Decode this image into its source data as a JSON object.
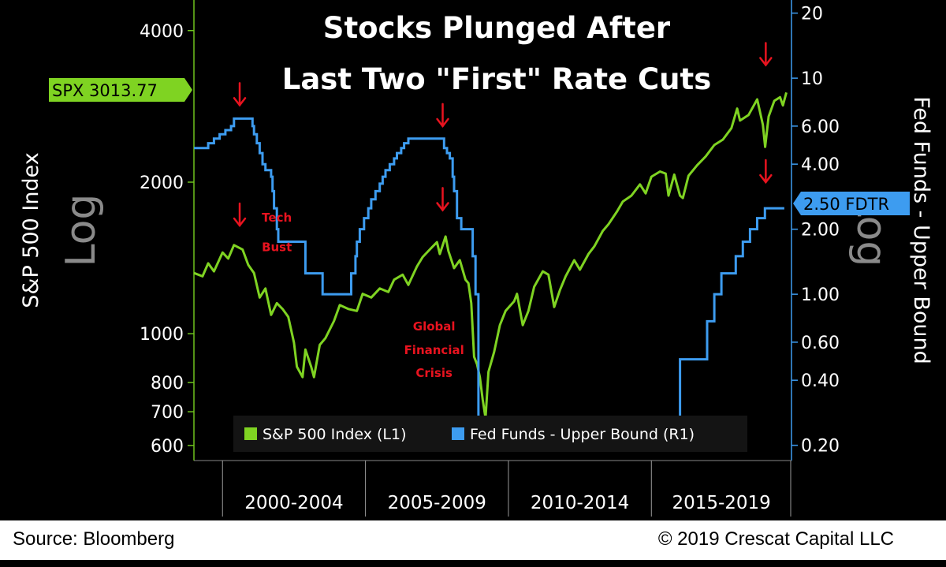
{
  "chart_data": {
    "type": "line",
    "title_line1": "Stocks Plunged After",
    "title_line2": "Last Two \"First\" Rate Cuts",
    "ylabel_left": "S&P 500 Index",
    "ylabel_left_scale": "Log",
    "ylabel_right": "Fed Funds - Upper Bound",
    "ylabel_right_scale": "Log",
    "left_ticks": [
      {
        "v": 4000,
        "label": "4000"
      },
      {
        "v": 2000,
        "label": "2000"
      },
      {
        "v": 1000,
        "label": "1000"
      },
      {
        "v": 800,
        "label": "800"
      },
      {
        "v": 700,
        "label": "700"
      },
      {
        "v": 600,
        "label": "600"
      }
    ],
    "right_ticks": [
      {
        "v": 20,
        "label": "20"
      },
      {
        "v": 10,
        "label": "10"
      },
      {
        "v": 6,
        "label": "6.00"
      },
      {
        "v": 4,
        "label": "4.00"
      },
      {
        "v": 2,
        "label": "2.00"
      },
      {
        "v": 1,
        "label": "1.00"
      },
      {
        "v": 0.6,
        "label": "0.60"
      },
      {
        "v": 0.4,
        "label": "0.40"
      },
      {
        "v": 0.2,
        "label": "0.20"
      }
    ],
    "x_periods": [
      "2000-2004",
      "2005-2009",
      "2010-2014",
      "2015-2019"
    ],
    "xlim": [
      1999.0,
      2019.9
    ],
    "left_ylim": [
      560,
      4600
    ],
    "right_ylim": [
      0.17,
      23
    ],
    "scale": "log",
    "series": [
      {
        "name": "S&P 500 Index (L1)",
        "axis": "left",
        "color": "#7fd322",
        "points": [
          [
            1999.0,
            1320
          ],
          [
            1999.3,
            1300
          ],
          [
            1999.5,
            1380
          ],
          [
            1999.7,
            1330
          ],
          [
            2000.0,
            1450
          ],
          [
            2000.2,
            1410
          ],
          [
            2000.4,
            1500
          ],
          [
            2000.7,
            1470
          ],
          [
            2000.9,
            1370
          ],
          [
            2001.1,
            1320
          ],
          [
            2001.3,
            1180
          ],
          [
            2001.5,
            1230
          ],
          [
            2001.7,
            1090
          ],
          [
            2001.9,
            1150
          ],
          [
            2002.1,
            1120
          ],
          [
            2002.3,
            1080
          ],
          [
            2002.5,
            960
          ],
          [
            2002.6,
            860
          ],
          [
            2002.8,
            820
          ],
          [
            2002.9,
            930
          ],
          [
            2003.1,
            860
          ],
          [
            2003.2,
            820
          ],
          [
            2003.4,
            950
          ],
          [
            2003.6,
            980
          ],
          [
            2003.9,
            1060
          ],
          [
            2004.1,
            1140
          ],
          [
            2004.4,
            1120
          ],
          [
            2004.7,
            1110
          ],
          [
            2004.9,
            1200
          ],
          [
            2005.2,
            1180
          ],
          [
            2005.5,
            1230
          ],
          [
            2005.8,
            1210
          ],
          [
            2006.0,
            1280
          ],
          [
            2006.3,
            1310
          ],
          [
            2006.5,
            1250
          ],
          [
            2006.8,
            1360
          ],
          [
            2007.0,
            1420
          ],
          [
            2007.3,
            1480
          ],
          [
            2007.5,
            1520
          ],
          [
            2007.6,
            1440
          ],
          [
            2007.8,
            1560
          ],
          [
            2007.9,
            1460
          ],
          [
            2008.1,
            1350
          ],
          [
            2008.3,
            1400
          ],
          [
            2008.5,
            1280
          ],
          [
            2008.6,
            1260
          ],
          [
            2008.7,
            1150
          ],
          [
            2008.8,
            900
          ],
          [
            2008.9,
            870
          ],
          [
            2009.0,
            820
          ],
          [
            2009.1,
            740
          ],
          [
            2009.2,
            680
          ],
          [
            2009.3,
            840
          ],
          [
            2009.5,
            920
          ],
          [
            2009.7,
            1040
          ],
          [
            2009.9,
            1110
          ],
          [
            2010.2,
            1160
          ],
          [
            2010.3,
            1200
          ],
          [
            2010.5,
            1040
          ],
          [
            2010.7,
            1110
          ],
          [
            2010.9,
            1240
          ],
          [
            2011.2,
            1330
          ],
          [
            2011.4,
            1310
          ],
          [
            2011.6,
            1130
          ],
          [
            2011.8,
            1220
          ],
          [
            2012.0,
            1300
          ],
          [
            2012.3,
            1400
          ],
          [
            2012.5,
            1340
          ],
          [
            2012.8,
            1440
          ],
          [
            2013.0,
            1490
          ],
          [
            2013.3,
            1600
          ],
          [
            2013.5,
            1650
          ],
          [
            2013.8,
            1750
          ],
          [
            2014.0,
            1830
          ],
          [
            2014.3,
            1880
          ],
          [
            2014.6,
            1980
          ],
          [
            2014.8,
            1900
          ],
          [
            2015.0,
            2050
          ],
          [
            2015.3,
            2100
          ],
          [
            2015.5,
            2080
          ],
          [
            2015.6,
            1880
          ],
          [
            2015.8,
            2070
          ],
          [
            2016.0,
            1880
          ],
          [
            2016.1,
            1860
          ],
          [
            2016.3,
            2060
          ],
          [
            2016.6,
            2160
          ],
          [
            2016.9,
            2250
          ],
          [
            2017.2,
            2370
          ],
          [
            2017.5,
            2430
          ],
          [
            2017.8,
            2560
          ],
          [
            2018.0,
            2800
          ],
          [
            2018.1,
            2650
          ],
          [
            2018.4,
            2720
          ],
          [
            2018.7,
            2920
          ],
          [
            2018.9,
            2600
          ],
          [
            2018.98,
            2350
          ],
          [
            2019.1,
            2700
          ],
          [
            2019.3,
            2900
          ],
          [
            2019.5,
            2950
          ],
          [
            2019.6,
            2840
          ],
          [
            2019.72,
            3013.77
          ]
        ]
      },
      {
        "name": "Fed Funds - Upper Bound (R1)",
        "axis": "right",
        "color": "#3d9cf0",
        "points": [
          [
            1999.0,
            4.75
          ],
          [
            1999.4,
            4.75
          ],
          [
            1999.5,
            5.0
          ],
          [
            1999.7,
            5.25
          ],
          [
            1999.9,
            5.5
          ],
          [
            2000.1,
            5.75
          ],
          [
            2000.3,
            6.0
          ],
          [
            2000.4,
            6.5
          ],
          [
            2000.95,
            6.5
          ],
          [
            2001.05,
            6.0
          ],
          [
            2001.1,
            5.5
          ],
          [
            2001.2,
            5.0
          ],
          [
            2001.3,
            4.5
          ],
          [
            2001.4,
            4.0
          ],
          [
            2001.5,
            3.75
          ],
          [
            2001.7,
            3.5
          ],
          [
            2001.75,
            3.0
          ],
          [
            2001.8,
            2.5
          ],
          [
            2001.9,
            2.0
          ],
          [
            2001.95,
            1.75
          ],
          [
            2002.85,
            1.75
          ],
          [
            2002.9,
            1.25
          ],
          [
            2003.5,
            1.0
          ],
          [
            2004.45,
            1.0
          ],
          [
            2004.5,
            1.25
          ],
          [
            2004.65,
            1.5
          ],
          [
            2004.7,
            1.75
          ],
          [
            2004.8,
            2.0
          ],
          [
            2004.95,
            2.25
          ],
          [
            2005.1,
            2.5
          ],
          [
            2005.2,
            2.75
          ],
          [
            2005.35,
            3.0
          ],
          [
            2005.5,
            3.25
          ],
          [
            2005.6,
            3.5
          ],
          [
            2005.7,
            3.75
          ],
          [
            2005.85,
            4.0
          ],
          [
            2006.0,
            4.25
          ],
          [
            2006.1,
            4.5
          ],
          [
            2006.25,
            4.75
          ],
          [
            2006.35,
            5.0
          ],
          [
            2006.5,
            5.25
          ],
          [
            2007.7,
            5.25
          ],
          [
            2007.75,
            4.75
          ],
          [
            2007.85,
            4.5
          ],
          [
            2007.95,
            4.25
          ],
          [
            2008.05,
            3.5
          ],
          [
            2008.1,
            3.0
          ],
          [
            2008.2,
            2.25
          ],
          [
            2008.35,
            2.0
          ],
          [
            2008.75,
            1.5
          ],
          [
            2008.85,
            1.0
          ],
          [
            2008.95,
            0.25
          ],
          [
            2015.95,
            0.25
          ],
          [
            2016.0,
            0.5
          ],
          [
            2016.95,
            0.75
          ],
          [
            2017.2,
            1.0
          ],
          [
            2017.45,
            1.25
          ],
          [
            2017.95,
            1.5
          ],
          [
            2018.2,
            1.75
          ],
          [
            2018.45,
            2.0
          ],
          [
            2018.7,
            2.25
          ],
          [
            2018.97,
            2.5
          ],
          [
            2019.65,
            2.5
          ]
        ]
      }
    ],
    "annotations": [
      {
        "text": "Tech",
        "x": 2001.9,
        "y": 1670,
        "axis": "left"
      },
      {
        "text": "Bust",
        "x": 2001.9,
        "y": 1460,
        "axis": "left"
      },
      {
        "text": "Global",
        "x": 2007.4,
        "y": 1015,
        "axis": "left"
      },
      {
        "text": "Financial",
        "x": 2007.4,
        "y": 912,
        "axis": "left"
      },
      {
        "text": "Crisis",
        "x": 2007.4,
        "y": 820,
        "axis": "left"
      }
    ],
    "arrows": [
      {
        "x": 2000.6,
        "axis": "right",
        "y": 7.5
      },
      {
        "x": 2000.6,
        "axis": "left",
        "y": 1640
      },
      {
        "x": 2007.7,
        "axis": "right",
        "y": 6.0
      },
      {
        "x": 2007.7,
        "axis": "left",
        "y": 1760
      },
      {
        "x": 2019.0,
        "axis": "right",
        "y": 11.5
      },
      {
        "x": 2019.0,
        "axis": "right",
        "y": 3.3
      }
    ],
    "badges": {
      "left": {
        "text": "SPX 3013.77",
        "color": "#7fd322"
      },
      "right": {
        "text": "2.50 FDTR",
        "color": "#3d9cf0"
      }
    },
    "legend": {
      "position": "bottom-center",
      "items": [
        {
          "label": "S&P 500 Index (L1)",
          "color": "#7fd322"
        },
        {
          "label": "Fed Funds - Upper Bound (R1)",
          "color": "#3d9cf0"
        }
      ]
    }
  },
  "footer": {
    "source": "Source: Bloomberg",
    "copyright": "© 2019 Crescat Capital LLC"
  }
}
